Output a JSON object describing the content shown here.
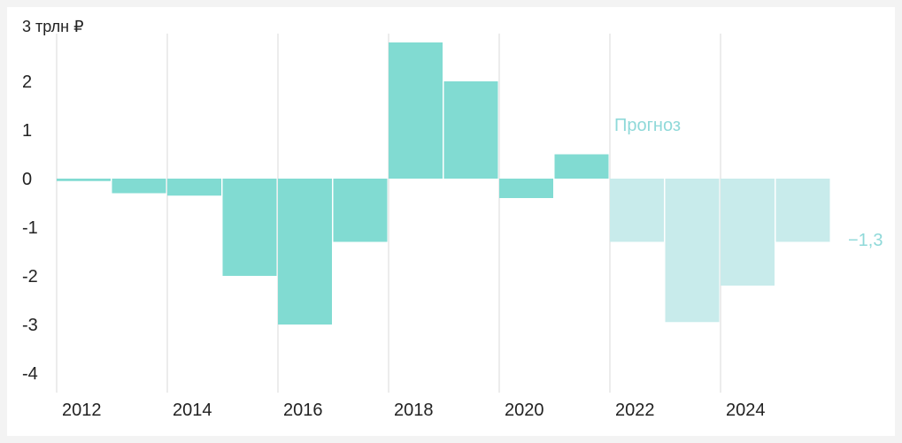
{
  "chart_data": {
    "type": "bar",
    "unit_label": "3 трлн ₽",
    "x": [
      2012,
      2013,
      2014,
      2015,
      2016,
      2017,
      2018,
      2019,
      2020,
      2021,
      2022,
      2023,
      2024,
      2025
    ],
    "values": [
      -0.05,
      -0.3,
      -0.35,
      -2.0,
      -3.0,
      -1.3,
      2.8,
      2.0,
      -0.4,
      0.5,
      -1.3,
      -2.95,
      -2.2,
      -1.3
    ],
    "forecast_from": 2022,
    "forecast_label": "Прогноз",
    "end_label": "−1,3",
    "x_tick_labels": [
      "2012",
      "2014",
      "2016",
      "2018",
      "2020",
      "2022",
      "2024"
    ],
    "y_tick_labels": [
      "2",
      "1",
      "0",
      "-1",
      "-2",
      "-3",
      "-4"
    ],
    "y_ticks": [
      2,
      1,
      0,
      -1,
      -2,
      -3,
      -4
    ],
    "ylim": [
      -4.4,
      3
    ],
    "colors": {
      "actual": "#81dbd2",
      "forecast": "#c8ebeb",
      "forecast_text": "#8fd9d9",
      "grid": "#d9d9d9"
    },
    "grid": "vertical"
  }
}
